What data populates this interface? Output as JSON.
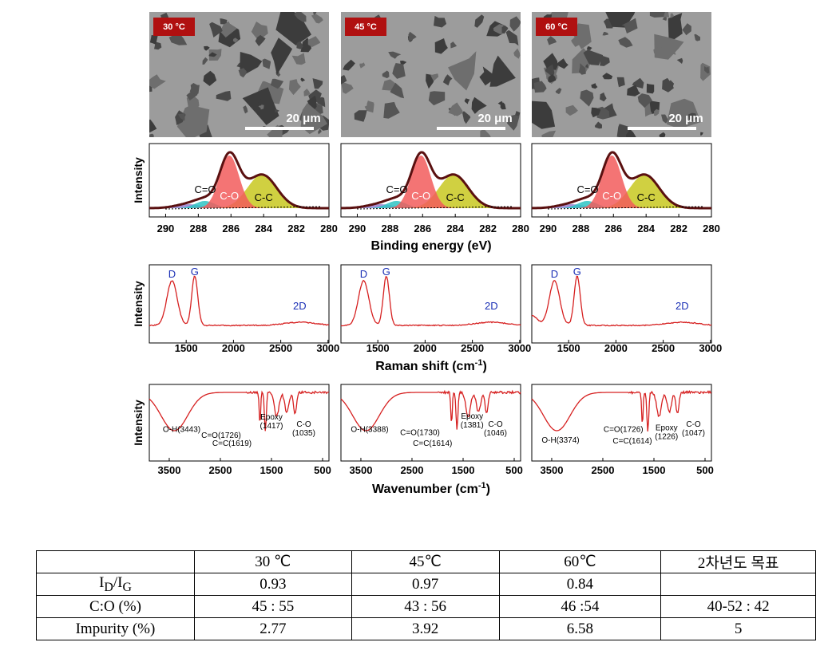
{
  "sem": {
    "labels": [
      "30 °C",
      "45 °C",
      "60 °C"
    ],
    "scale_bar": "20 μm"
  },
  "xps": {
    "ylabel": "Intensity",
    "xlabel": "Binding energy (eV)",
    "xlim": [
      291,
      280
    ],
    "xticks": [
      290,
      288,
      286,
      284,
      282,
      280
    ],
    "peaks": [
      "C=O",
      "C-O",
      "C-C"
    ]
  },
  "raman": {
    "ylabel": "Intensity",
    "xlabel": [
      "Raman shift (cm",
      "-1",
      ")"
    ],
    "xlim": [
      1110,
      3010
    ],
    "xticks": [
      1500,
      2000,
      2500,
      3000
    ],
    "peaks": [
      "D",
      "G",
      "2D"
    ]
  },
  "ftir": {
    "ylabel": "Intensity",
    "xlabel": [
      "Wavenumber (cm",
      "-1",
      ")"
    ],
    "xlim": [
      3890,
      375
    ],
    "xticks": [
      3500,
      2500,
      1500,
      500
    ],
    "panels": [
      [
        [
          "O-H(3443)"
        ],
        [
          "C=O(1726)"
        ],
        [
          "C=C(1619)"
        ],
        [
          "Epoxy",
          "(1417)"
        ],
        [
          "C-O",
          "(1035)"
        ]
      ],
      [
        [
          "O-H(3388)"
        ],
        [
          "C=O(1730)"
        ],
        [
          "C=C(1614)"
        ],
        [
          "Epoxy",
          "(1381)"
        ],
        [
          "C-O",
          "(1046)"
        ]
      ],
      [
        [
          "O-H(3374)"
        ],
        [
          "C=O(1726)"
        ],
        [
          "C=C(1614)"
        ],
        [
          "Epoxy",
          "(1226)"
        ],
        [
          "C-O",
          "(1047)"
        ]
      ]
    ]
  },
  "table": {
    "header": [
      "30 ℃",
      "45℃",
      "60℃",
      "2차년도 목표"
    ],
    "rows": [
      {
        "label": [
          "I",
          "D",
          "/I",
          "G"
        ],
        "values": [
          "0.93",
          "0.97",
          "0.84"
        ]
      },
      {
        "label": [
          "C:O (%)"
        ],
        "values": [
          "45 : 55",
          "43 : 56",
          "46 :54",
          "40-52 : 42"
        ]
      },
      {
        "label": [
          "Impurity (%)"
        ],
        "values": [
          "2.77",
          "3.92",
          "6.58",
          "5"
        ]
      }
    ]
  }
}
